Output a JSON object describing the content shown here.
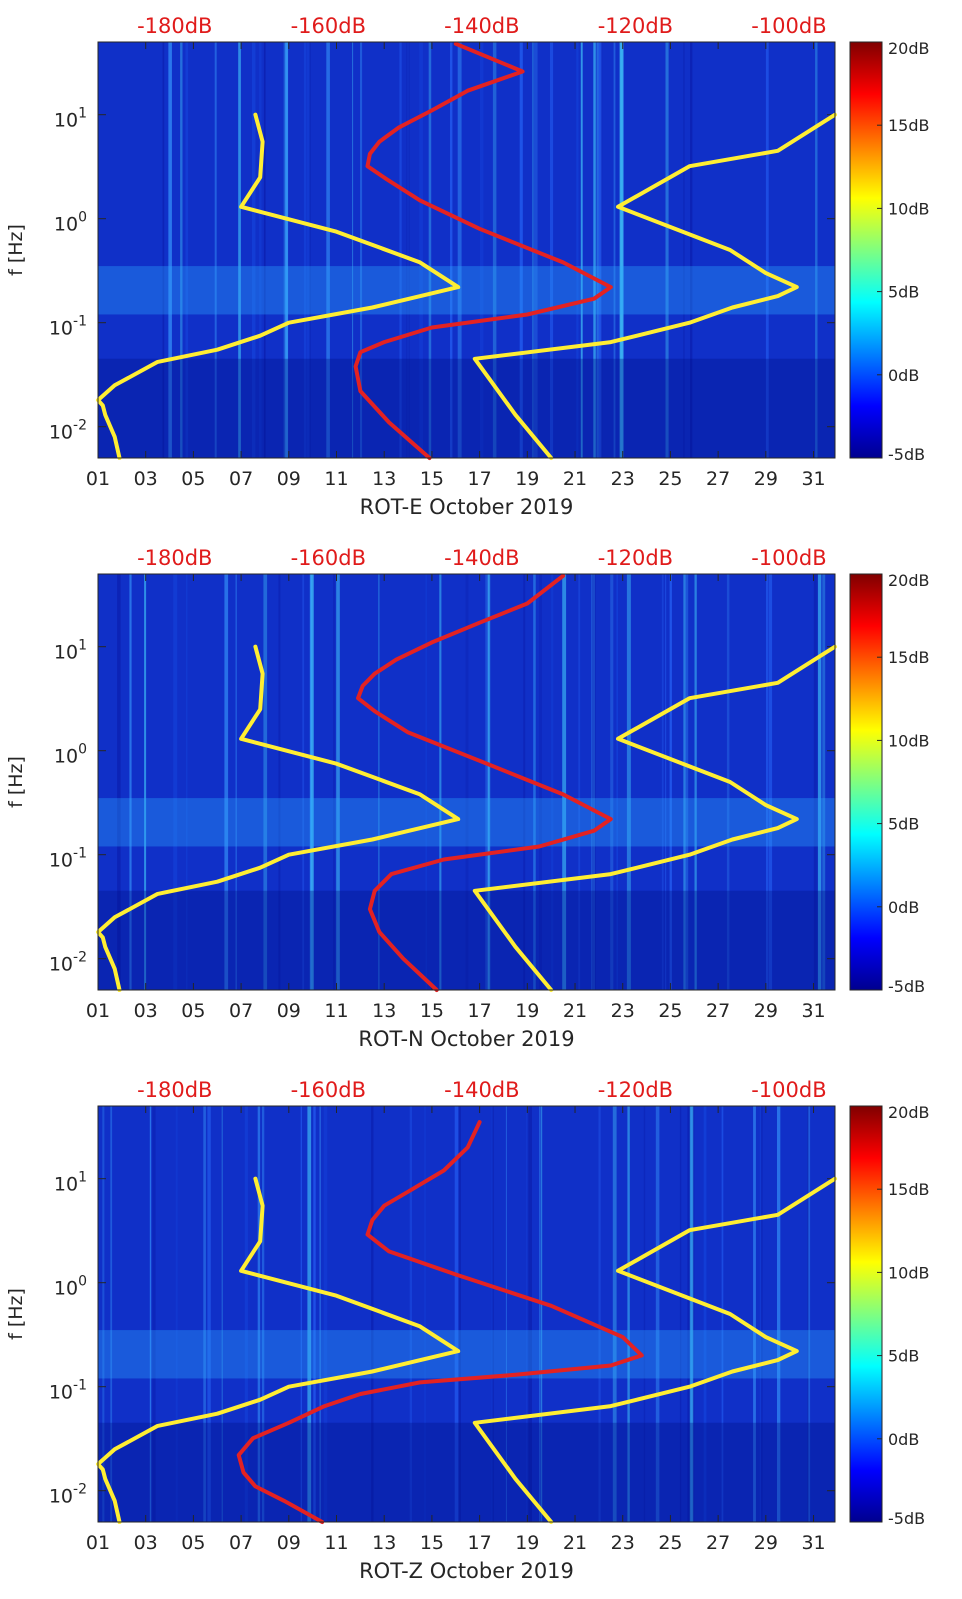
{
  "chart_data": [
    {
      "type": "heatmap",
      "xlabel": "ROT-E October 2019",
      "ylabel": "f [Hz]",
      "x_tick_labels": [
        "01",
        "03",
        "05",
        "07",
        "09",
        "11",
        "13",
        "15",
        "17",
        "19",
        "21",
        "23",
        "25",
        "27",
        "29",
        "31"
      ],
      "xlim": [
        1,
        31.9
      ],
      "ylim": [
        0.005,
        50
      ],
      "y_scale": "log",
      "y_tick_labels": [
        "10^-2",
        "10^-1",
        "10^0",
        "10^1"
      ],
      "y_tick_values": [
        0.01,
        0.1,
        1,
        10
      ],
      "top_axis_labels": [
        "-180dB",
        "-160dB",
        "-140dB",
        "-120dB",
        "-100dB"
      ],
      "top_axis_values": [
        -180,
        -160,
        -140,
        -120,
        -100
      ],
      "top_axis_range": [
        -190,
        -94
      ],
      "colorbar": {
        "labels": [
          "20dB",
          "15dB",
          "10dB",
          "5dB",
          "0dB",
          "-5dB"
        ],
        "range": [
          -5,
          20
        ],
        "colormap": "jet"
      },
      "series": [
        {
          "color": "#ffee33",
          "x": [
            1.9,
            1.7,
            1.3,
            1.2,
            1.0,
            1.7,
            3.5,
            6.0,
            7.8,
            9.0,
            12.5,
            16.1,
            14.5,
            11.0,
            7.0,
            7.8,
            7.9,
            7.6
          ],
          "y": [
            0.005,
            0.008,
            0.013,
            0.016,
            0.018,
            0.025,
            0.042,
            0.055,
            0.075,
            0.1,
            0.14,
            0.22,
            0.38,
            0.75,
            1.3,
            2.5,
            5.5,
            10
          ]
        },
        {
          "color": "#ffee33",
          "x": [
            20.0,
            18.5,
            16.8,
            22.5,
            25.8,
            27.6,
            29.5,
            30.3,
            29.0,
            27.5,
            22.8,
            25.8,
            29.5,
            31.9
          ],
          "y": [
            0.005,
            0.013,
            0.045,
            0.065,
            0.1,
            0.14,
            0.18,
            0.22,
            0.3,
            0.5,
            1.3,
            3.2,
            4.5,
            10
          ]
        },
        {
          "color": "#e32222",
          "x": [
            14.9,
            13.2,
            12.0,
            11.8,
            12.0,
            13.0,
            15.0,
            19.0,
            21.8,
            22.5,
            20.5,
            17.0,
            14.5,
            13.1,
            12.3,
            12.4,
            12.8,
            13.6,
            15.0,
            16.5,
            18.8,
            16.0
          ],
          "y": [
            0.005,
            0.011,
            0.022,
            0.038,
            0.052,
            0.065,
            0.09,
            0.12,
            0.17,
            0.22,
            0.38,
            0.8,
            1.5,
            2.4,
            3.2,
            4.2,
            5.5,
            7.5,
            11,
            17,
            26,
            48
          ]
        }
      ]
    },
    {
      "type": "heatmap",
      "xlabel": "ROT-N October 2019",
      "ylabel": "f [Hz]",
      "x_tick_labels": [
        "01",
        "03",
        "05",
        "07",
        "09",
        "11",
        "13",
        "15",
        "17",
        "19",
        "21",
        "23",
        "25",
        "27",
        "29",
        "31"
      ],
      "xlim": [
        1,
        31.9
      ],
      "ylim": [
        0.005,
        50
      ],
      "y_scale": "log",
      "y_tick_labels": [
        "10^-2",
        "10^-1",
        "10^0",
        "10^1"
      ],
      "y_tick_values": [
        0.01,
        0.1,
        1,
        10
      ],
      "top_axis_labels": [
        "-180dB",
        "-160dB",
        "-140dB",
        "-120dB",
        "-100dB"
      ],
      "top_axis_values": [
        -180,
        -160,
        -140,
        -120,
        -100
      ],
      "top_axis_range": [
        -190,
        -94
      ],
      "colorbar": {
        "labels": [
          "20dB",
          "15dB",
          "10dB",
          "5dB",
          "0dB",
          "-5dB"
        ],
        "range": [
          -5,
          20
        ],
        "colormap": "jet"
      },
      "series": [
        {
          "color": "#ffee33",
          "x": [
            1.9,
            1.7,
            1.3,
            1.2,
            1.0,
            1.7,
            3.5,
            6.0,
            7.8,
            9.0,
            12.5,
            16.1,
            14.5,
            11.0,
            7.0,
            7.8,
            7.9,
            7.6
          ],
          "y": [
            0.005,
            0.008,
            0.013,
            0.016,
            0.018,
            0.025,
            0.042,
            0.055,
            0.075,
            0.1,
            0.14,
            0.22,
            0.38,
            0.75,
            1.3,
            2.5,
            5.5,
            10
          ]
        },
        {
          "color": "#ffee33",
          "x": [
            20.0,
            18.5,
            16.8,
            22.5,
            25.8,
            27.6,
            29.5,
            30.3,
            29.0,
            27.5,
            22.8,
            25.8,
            29.5,
            31.9
          ],
          "y": [
            0.005,
            0.013,
            0.045,
            0.065,
            0.1,
            0.14,
            0.18,
            0.22,
            0.3,
            0.5,
            1.3,
            3.2,
            4.5,
            10
          ]
        },
        {
          "color": "#e32222",
          "x": [
            15.2,
            13.8,
            12.8,
            12.4,
            12.6,
            13.3,
            15.5,
            19.5,
            21.8,
            22.5,
            20.5,
            17.0,
            14.0,
            12.6,
            11.9,
            12.1,
            12.6,
            13.5,
            15.0,
            17.0,
            19.0,
            20.5
          ],
          "y": [
            0.005,
            0.01,
            0.018,
            0.03,
            0.045,
            0.065,
            0.09,
            0.12,
            0.17,
            0.22,
            0.38,
            0.8,
            1.5,
            2.4,
            3.2,
            4.2,
            5.5,
            7.5,
            11,
            17,
            26,
            48
          ]
        }
      ]
    },
    {
      "type": "heatmap",
      "xlabel": "ROT-Z October 2019",
      "ylabel": "f [Hz]",
      "x_tick_labels": [
        "01",
        "03",
        "05",
        "07",
        "09",
        "11",
        "13",
        "15",
        "17",
        "19",
        "21",
        "23",
        "25",
        "27",
        "29",
        "31"
      ],
      "xlim": [
        1,
        31.9
      ],
      "ylim": [
        0.005,
        50
      ],
      "y_scale": "log",
      "y_tick_labels": [
        "10^-2",
        "10^-1",
        "10^0",
        "10^1"
      ],
      "y_tick_values": [
        0.01,
        0.1,
        1,
        10
      ],
      "top_axis_labels": [
        "-180dB",
        "-160dB",
        "-140dB",
        "-120dB",
        "-100dB"
      ],
      "top_axis_values": [
        -180,
        -160,
        -140,
        -120,
        -100
      ],
      "top_axis_range": [
        -190,
        -94
      ],
      "colorbar": {
        "labels": [
          "20dB",
          "15dB",
          "10dB",
          "5dB",
          "0dB",
          "-5dB"
        ],
        "range": [
          -5,
          20
        ],
        "colormap": "jet"
      },
      "series": [
        {
          "color": "#ffee33",
          "x": [
            1.9,
            1.7,
            1.3,
            1.2,
            1.0,
            1.7,
            3.5,
            6.0,
            7.8,
            9.0,
            12.5,
            16.1,
            14.5,
            11.0,
            7.0,
            7.8,
            7.9,
            7.6
          ],
          "y": [
            0.005,
            0.008,
            0.013,
            0.016,
            0.018,
            0.025,
            0.042,
            0.055,
            0.075,
            0.1,
            0.14,
            0.22,
            0.38,
            0.75,
            1.3,
            2.5,
            5.5,
            10
          ]
        },
        {
          "color": "#ffee33",
          "x": [
            20.0,
            18.5,
            16.8,
            22.5,
            25.8,
            27.6,
            29.5,
            30.3,
            29.0,
            27.5,
            22.8,
            25.8,
            29.5,
            31.9
          ],
          "y": [
            0.005,
            0.013,
            0.045,
            0.065,
            0.1,
            0.14,
            0.18,
            0.22,
            0.3,
            0.5,
            1.3,
            3.2,
            4.5,
            10
          ]
        },
        {
          "color": "#e32222",
          "x": [
            10.4,
            8.8,
            7.6,
            7.1,
            6.9,
            7.5,
            9.0,
            10.5,
            12.0,
            14.5,
            18.5,
            22.5,
            23.8,
            23.0,
            20.0,
            16.0,
            13.2,
            12.3,
            12.5,
            13.0,
            14.0,
            15.5,
            16.5,
            17.0
          ],
          "y": [
            0.005,
            0.008,
            0.011,
            0.015,
            0.022,
            0.032,
            0.045,
            0.065,
            0.085,
            0.11,
            0.13,
            0.16,
            0.2,
            0.3,
            0.6,
            1.2,
            2.0,
            2.9,
            4.0,
            5.5,
            7.5,
            12,
            20,
            35
          ]
        }
      ]
    }
  ]
}
